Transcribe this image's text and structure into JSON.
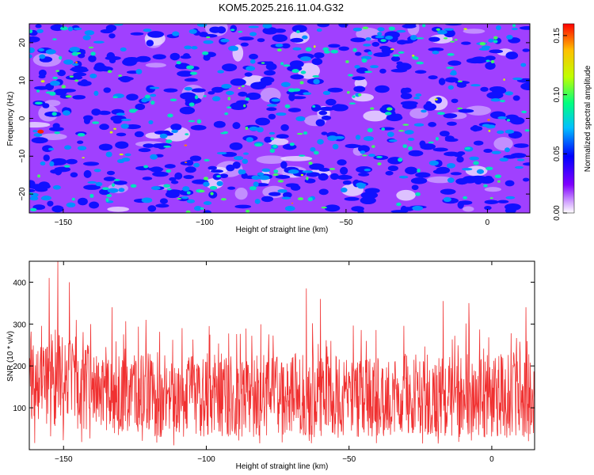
{
  "title": "KOM5.2025.216.11.04.G32",
  "chart_data": [
    {
      "type": "heatmap",
      "xlabel": "Height of straight line (km)",
      "ylabel": "Frequency (Hz)",
      "xlim": [
        -162,
        15
      ],
      "ylim": [
        -25,
        25
      ],
      "xticks": [
        -150,
        -100,
        -50,
        0
      ],
      "yticks": [
        -20,
        -10,
        0,
        10,
        20
      ],
      "colorbar": {
        "label": "Normalized spectral amplitude",
        "range": [
          0.0,
          0.16
        ],
        "ticks": [
          "0.00",
          "0.05",
          "0.10",
          "0.15"
        ],
        "colormap": [
          "#ffffff",
          "#8000ff",
          "#0000ff",
          "#00c0ff",
          "#00ff80",
          "#c0ff00",
          "#ffc000",
          "#ff0000"
        ]
      }
    },
    {
      "type": "line",
      "xlabel": "Height of straight line (km)",
      "ylabel": "SNR (10 * v/v)",
      "xlim": [
        -162,
        15
      ],
      "ylim": [
        0,
        450
      ],
      "xticks": [
        -150,
        -100,
        -50,
        0
      ],
      "yticks": [
        100,
        200,
        300,
        400
      ],
      "color": "#f03030",
      "series_summary": {
        "typical_range": [
          30,
          230
        ],
        "peaks": [
          {
            "x": -152,
            "y": 450
          },
          {
            "x": -155,
            "y": 410
          },
          {
            "x": -148,
            "y": 400
          },
          {
            "x": -133,
            "y": 340
          },
          {
            "x": -65,
            "y": 385
          },
          {
            "x": -60,
            "y": 360
          },
          {
            "x": -17,
            "y": 355
          },
          {
            "x": -8,
            "y": 350
          },
          {
            "x": 12,
            "y": 340
          }
        ]
      }
    }
  ]
}
